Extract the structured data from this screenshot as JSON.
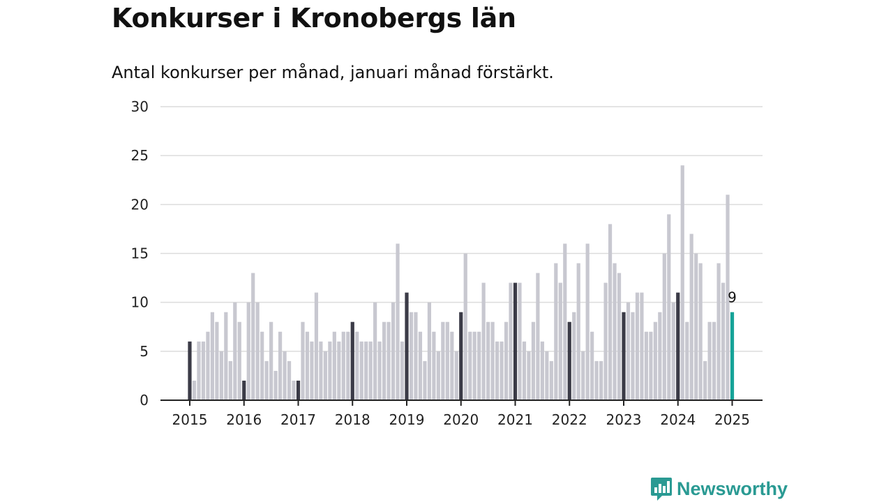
{
  "title": "Konkurser i Kronobergs län",
  "subtitle": "Antal konkurser per månad, januari månad förstärkt.",
  "brand": "Newsworthy",
  "colors": {
    "regular": "#c8c8d0",
    "january": "#3b3b47",
    "latest": "#16a398",
    "grid": "#dcdcdc",
    "axis": "#222222",
    "brand": "#2a9a93"
  },
  "chart_data": {
    "type": "bar",
    "start": "2015-01",
    "frequency": "monthly",
    "ylim": [
      0,
      30
    ],
    "yticks": [
      0,
      5,
      10,
      15,
      20,
      25,
      30
    ],
    "xtick_labels": [
      "2015",
      "2016",
      "2017",
      "2018",
      "2019",
      "2020",
      "2021",
      "2022",
      "2023",
      "2024",
      "2025"
    ],
    "grid": true,
    "highlight": "January bars darker; latest month highlighted",
    "latest_label": "9",
    "values": [
      6,
      2,
      6,
      6,
      7,
      9,
      8,
      5,
      9,
      4,
      10,
      8,
      2,
      10,
      13,
      10,
      7,
      4,
      8,
      3,
      7,
      5,
      4,
      2,
      2,
      8,
      7,
      6,
      11,
      6,
      5,
      6,
      7,
      6,
      7,
      7,
      8,
      7,
      6,
      6,
      6,
      10,
      6,
      8,
      8,
      10,
      16,
      6,
      11,
      9,
      9,
      7,
      4,
      10,
      7,
      5,
      8,
      8,
      7,
      5,
      9,
      15,
      7,
      7,
      7,
      12,
      8,
      8,
      6,
      6,
      8,
      12,
      12,
      12,
      6,
      5,
      8,
      13,
      6,
      5,
      4,
      14,
      12,
      16,
      8,
      9,
      14,
      5,
      16,
      7,
      4,
      4,
      12,
      18,
      14,
      13,
      9,
      10,
      9,
      11,
      11,
      7,
      7,
      8,
      9,
      15,
      19,
      10,
      11,
      24,
      8,
      17,
      15,
      14,
      4,
      8,
      8,
      14,
      12,
      21,
      9
    ]
  }
}
